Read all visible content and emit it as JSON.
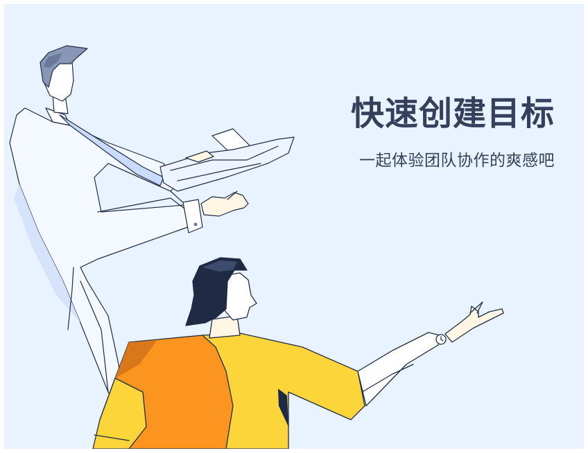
{
  "title": "快速创建目标",
  "subtitle": "一起体验团队协作的爽感吧",
  "colors": {
    "background": "#e9f3ff",
    "text": "#34405c",
    "shirt_orange": "#fb951f",
    "shirt_yellow": "#fcd53a",
    "hair": "#1f2a44",
    "tie": "#c9dcff"
  },
  "illustration": {
    "figure_1": "man-in-white-shirt-holding-documents",
    "figure_2": "woman-in-orange-yellow-shirt-reaching"
  }
}
